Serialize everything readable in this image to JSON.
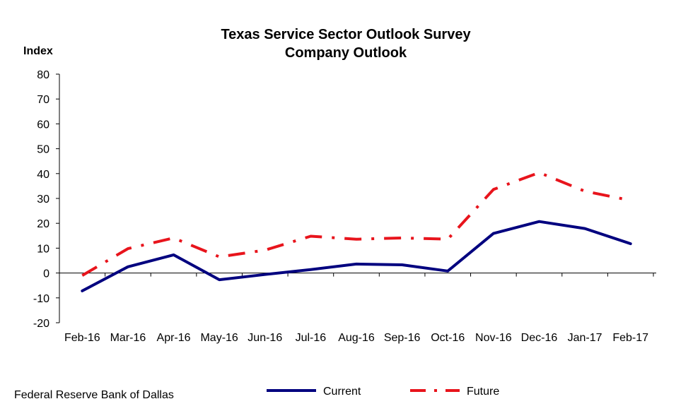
{
  "chart_data": {
    "type": "line",
    "title": "Texas Service Sector Outlook Survey",
    "subtitle": "Company Outlook",
    "ylabel": "Index",
    "xlabel": "",
    "source": "Federal Reserve Bank of Dallas",
    "categories": [
      "Feb-16",
      "Mar-16",
      "Apr-16",
      "May-16",
      "Jun-16",
      "Jul-16",
      "Aug-16",
      "Sep-16",
      "Oct-16",
      "Nov-16",
      "Dec-16",
      "Jan-17",
      "Feb-17"
    ],
    "ylim": [
      -20,
      80
    ],
    "yticks": [
      -20,
      -10,
      0,
      10,
      20,
      30,
      40,
      50,
      60,
      70,
      80
    ],
    "grid": false,
    "legend_position": "bottom",
    "series": [
      {
        "name": "Current",
        "color": "#00007F",
        "style": "solid",
        "values": [
          -7.2,
          2.5,
          7.3,
          -2.7,
          -0.6,
          1.4,
          3.6,
          3.3,
          0.8,
          15.9,
          20.7,
          17.9,
          11.8
        ]
      },
      {
        "name": "Future",
        "color": "#E8141C",
        "style": "dash-dot",
        "values": [
          -1.0,
          9.8,
          14.1,
          6.5,
          9.2,
          14.8,
          13.6,
          14.1,
          13.6,
          33.6,
          40.4,
          32.9,
          29.2
        ]
      }
    ]
  }
}
